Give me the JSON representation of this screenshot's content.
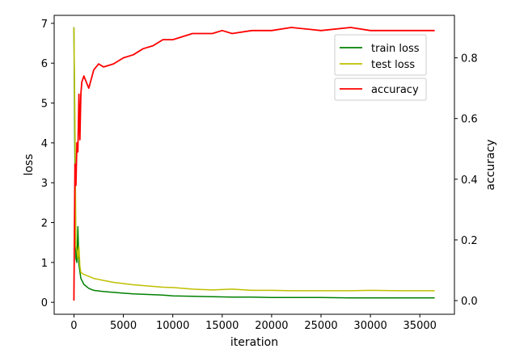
{
  "chart_data": {
    "type": "line",
    "title": "",
    "xlabel": "iteration",
    "ylabel_left": "loss",
    "ylabel_right": "accuracy",
    "xlim": [
      -2000,
      38500
    ],
    "ylim_left": [
      -0.3,
      7.2
    ],
    "ylim_right": [
      -0.045,
      0.94
    ],
    "xticks": [
      0,
      5000,
      10000,
      15000,
      20000,
      25000,
      30000,
      35000
    ],
    "yticks_left": [
      0,
      1,
      2,
      3,
      4,
      5,
      6,
      7
    ],
    "yticks_right": [
      0.0,
      0.2,
      0.4,
      0.6,
      0.8
    ],
    "yticks_right_labels": [
      "0.0",
      "0.2",
      "0.4",
      "0.6",
      "0.8"
    ],
    "grid": false,
    "legend": [
      {
        "position": "upper-right",
        "entries": [
          "train loss",
          "test loss"
        ]
      },
      {
        "position": "upper-right-below",
        "entries": [
          "accuracy"
        ]
      }
    ],
    "series": [
      {
        "name": "train loss",
        "axis": "left",
        "color": "#008000",
        "x": [
          0,
          100,
          200,
          300,
          400,
          500,
          700,
          1000,
          1500,
          2000,
          3000,
          4000,
          5000,
          6000,
          7000,
          8000,
          9000,
          10000,
          12000,
          14000,
          16000,
          18000,
          20000,
          22000,
          25000,
          28000,
          30000,
          33000,
          36500
        ],
        "y": [
          6.9,
          3.4,
          1.1,
          1.0,
          1.9,
          0.95,
          0.6,
          0.45,
          0.35,
          0.3,
          0.27,
          0.25,
          0.23,
          0.21,
          0.2,
          0.19,
          0.18,
          0.16,
          0.15,
          0.14,
          0.13,
          0.13,
          0.12,
          0.12,
          0.12,
          0.11,
          0.11,
          0.11,
          0.11
        ]
      },
      {
        "name": "test loss",
        "axis": "left",
        "color": "#bfbf00",
        "x": [
          0,
          100,
          200,
          300,
          400,
          500,
          600,
          700,
          1000,
          1500,
          2000,
          3000,
          4000,
          5000,
          6000,
          7000,
          8000,
          9000,
          10000,
          12000,
          14000,
          16000,
          18000,
          20000,
          22000,
          25000,
          28000,
          30000,
          33000,
          36500
        ],
        "y": [
          6.9,
          4.5,
          1.4,
          1.3,
          1.1,
          1.4,
          0.9,
          0.75,
          0.7,
          0.65,
          0.6,
          0.55,
          0.5,
          0.47,
          0.44,
          0.42,
          0.4,
          0.38,
          0.37,
          0.33,
          0.31,
          0.33,
          0.3,
          0.3,
          0.29,
          0.29,
          0.29,
          0.3,
          0.29,
          0.29
        ]
      },
      {
        "name": "accuracy",
        "axis": "right",
        "color": "#ff0000",
        "x": [
          0,
          100,
          200,
          300,
          400,
          500,
          600,
          700,
          800,
          1000,
          1500,
          2000,
          2500,
          3000,
          4000,
          5000,
          6000,
          7000,
          8000,
          9000,
          10000,
          12000,
          14000,
          15000,
          16000,
          18000,
          20000,
          22000,
          25000,
          28000,
          30000,
          33000,
          36500
        ],
        "y": [
          0.0,
          0.45,
          0.38,
          0.52,
          0.49,
          0.68,
          0.53,
          0.68,
          0.72,
          0.74,
          0.7,
          0.76,
          0.78,
          0.77,
          0.78,
          0.8,
          0.81,
          0.83,
          0.84,
          0.86,
          0.86,
          0.88,
          0.88,
          0.89,
          0.88,
          0.89,
          0.89,
          0.9,
          0.89,
          0.9,
          0.89,
          0.89,
          0.89
        ]
      }
    ]
  }
}
